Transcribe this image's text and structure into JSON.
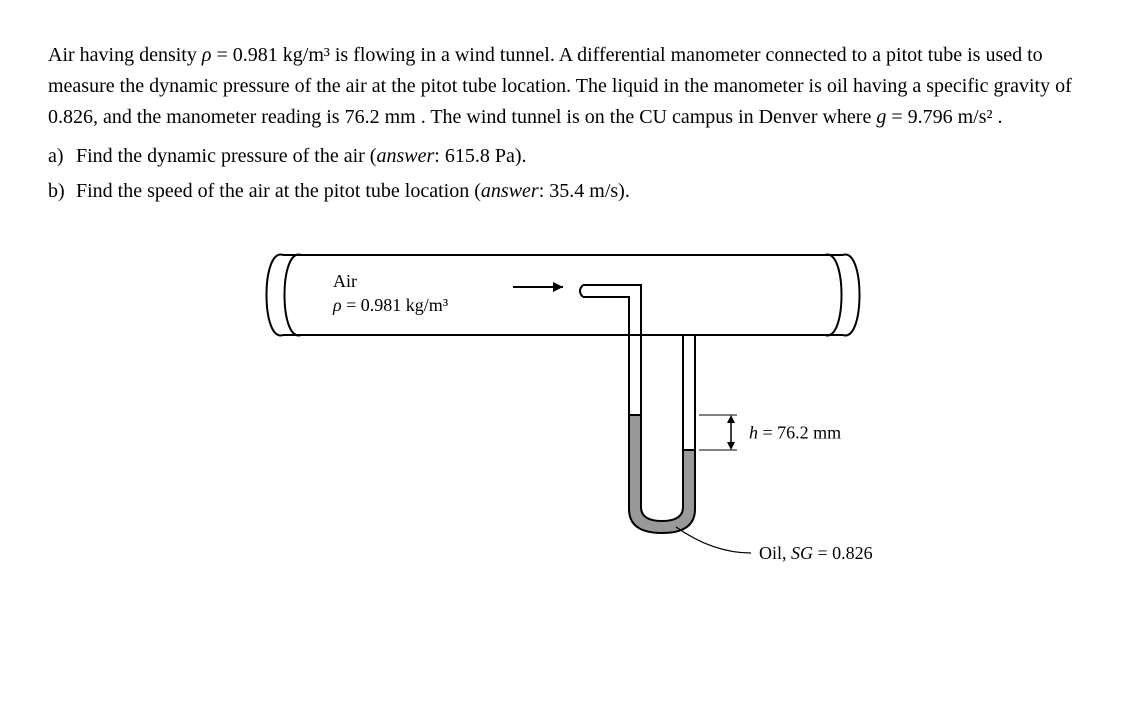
{
  "problem": {
    "intro_html": "Air having density <span class='var'>ρ</span> = 0.981 kg/m³ is flowing in a wind tunnel. A differential manometer connected to a pitot tube is used to measure the dynamic pressure of the air at the pitot tube location. The liquid in the manometer is oil having a specific gravity of 0.826, and the manometer reading is  76.2 mm . The wind tunnel is on the CU campus in Denver where  <span class='var'>g</span> = 9.796 m/s² .",
    "parts": [
      {
        "marker": "a)",
        "text_html": "Find the dynamic pressure of the air (<span class='italic'>answer</span>: 615.8 Pa)."
      },
      {
        "marker": "b)",
        "text_html": "Find the speed of the air at the pitot tube location (<span class='italic'>answer</span>: 35.4 m/s)."
      }
    ]
  },
  "figure": {
    "air_label": "Air",
    "density_label_html": "<tspan font-style='italic'>ρ</tspan> = 0.981 kg/m³",
    "h_label_html": "<tspan font-style='italic'>h</tspan> = 76.2 mm",
    "oil_label_html": "Oil, <tspan font-style='italic'>SG</tspan> = 0.826",
    "colors": {
      "stroke": "#000000",
      "oil_fill": "#999999",
      "background": "#ffffff"
    },
    "stroke_width": 2,
    "font_size": 18,
    "density_font_size": 18
  }
}
